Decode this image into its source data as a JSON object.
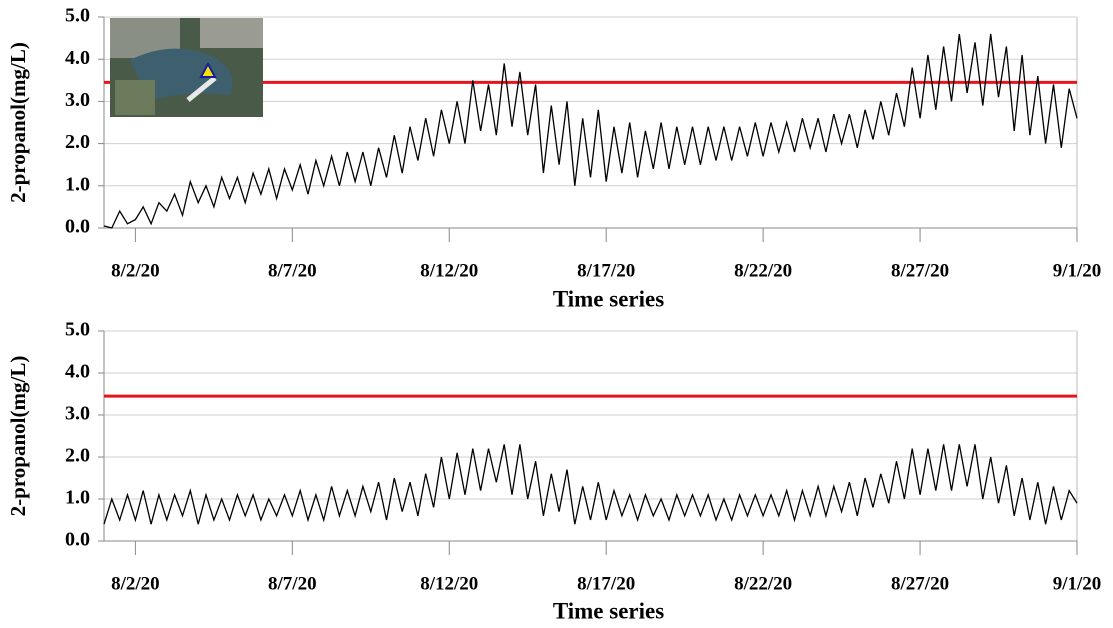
{
  "chart_data": [
    {
      "type": "line",
      "y_label": "2-propanol(mg/L)",
      "x_label": "Time series",
      "categories": [
        null,
        null,
        null,
        null,
        "8/2/20",
        null,
        null,
        null,
        null,
        null,
        null,
        null,
        null,
        null,
        null,
        null,
        null,
        null,
        null,
        null,
        null,
        null,
        null,
        null,
        "8/7/20",
        null,
        null,
        null,
        null,
        null,
        null,
        null,
        null,
        null,
        null,
        null,
        null,
        null,
        null,
        null,
        null,
        null,
        null,
        null,
        "8/12/20",
        null,
        null,
        null,
        null,
        null,
        null,
        null,
        null,
        null,
        null,
        null,
        null,
        null,
        null,
        null,
        null,
        null,
        null,
        null,
        "8/17/20",
        null,
        null,
        null,
        null,
        null,
        null,
        null,
        null,
        null,
        null,
        null,
        null,
        null,
        null,
        null,
        null,
        null,
        null,
        null,
        "8/22/20",
        null,
        null,
        null,
        null,
        null,
        null,
        null,
        null,
        null,
        null,
        null,
        null,
        null,
        null,
        null,
        null,
        null,
        null,
        null,
        "8/27/20",
        null,
        null,
        null,
        null,
        null,
        null,
        null,
        null,
        null,
        null,
        null,
        null,
        null,
        null,
        null,
        null,
        null,
        null,
        null,
        "9/1/20"
      ],
      "values": [
        0.05,
        0.0,
        0.4,
        0.1,
        0.2,
        0.5,
        0.1,
        0.6,
        0.4,
        0.8,
        0.3,
        1.1,
        0.6,
        1.0,
        0.5,
        1.2,
        0.7,
        1.2,
        0.6,
        1.3,
        0.8,
        1.4,
        0.7,
        1.4,
        0.9,
        1.5,
        0.8,
        1.6,
        1.0,
        1.7,
        1.0,
        1.8,
        1.1,
        1.8,
        1.0,
        1.9,
        1.2,
        2.2,
        1.3,
        2.4,
        1.6,
        2.6,
        1.7,
        2.8,
        2.0,
        3.0,
        2.0,
        3.5,
        2.3,
        3.4,
        2.2,
        3.9,
        2.4,
        3.7,
        2.2,
        3.4,
        1.3,
        2.9,
        1.5,
        3.0,
        1.0,
        2.6,
        1.2,
        2.8,
        1.1,
        2.4,
        1.3,
        2.5,
        1.2,
        2.3,
        1.4,
        2.5,
        1.4,
        2.4,
        1.5,
        2.4,
        1.5,
        2.4,
        1.6,
        2.4,
        1.6,
        2.4,
        1.7,
        2.5,
        1.7,
        2.5,
        1.8,
        2.5,
        1.8,
        2.6,
        1.9,
        2.6,
        1.8,
        2.7,
        2.0,
        2.7,
        1.9,
        2.8,
        2.1,
        3.0,
        2.2,
        3.2,
        2.4,
        3.8,
        2.6,
        4.1,
        2.8,
        4.3,
        3.0,
        4.6,
        3.2,
        4.4,
        2.9,
        4.6,
        3.1,
        4.3,
        2.3,
        4.1,
        2.2,
        3.6,
        2.0,
        3.4,
        1.9,
        3.3,
        2.6
      ],
      "color": "#000000",
      "threshold": 3.45,
      "threshold_color": "#e8141b",
      "grid": true,
      "ylim": [
        0,
        5
      ],
      "yticks": [
        {
          "value": 0,
          "label": "0.0"
        },
        {
          "value": 1,
          "label": "1.0"
        },
        {
          "value": 2,
          "label": "2.0"
        },
        {
          "value": 3,
          "label": "3.0"
        },
        {
          "value": 4,
          "label": "4.0"
        },
        {
          "value": 5,
          "label": "5.0"
        }
      ]
    },
    {
      "type": "line",
      "y_label": "2-propanol(mg/L)",
      "x_label": "Time series",
      "categories": [
        null,
        null,
        null,
        null,
        "8/2/20",
        null,
        null,
        null,
        null,
        null,
        null,
        null,
        null,
        null,
        null,
        null,
        null,
        null,
        null,
        null,
        null,
        null,
        null,
        null,
        "8/7/20",
        null,
        null,
        null,
        null,
        null,
        null,
        null,
        null,
        null,
        null,
        null,
        null,
        null,
        null,
        null,
        null,
        null,
        null,
        null,
        "8/12/20",
        null,
        null,
        null,
        null,
        null,
        null,
        null,
        null,
        null,
        null,
        null,
        null,
        null,
        null,
        null,
        null,
        null,
        null,
        null,
        "8/17/20",
        null,
        null,
        null,
        null,
        null,
        null,
        null,
        null,
        null,
        null,
        null,
        null,
        null,
        null,
        null,
        null,
        null,
        null,
        null,
        "8/22/20",
        null,
        null,
        null,
        null,
        null,
        null,
        null,
        null,
        null,
        null,
        null,
        null,
        null,
        null,
        null,
        null,
        null,
        null,
        null,
        "8/27/20",
        null,
        null,
        null,
        null,
        null,
        null,
        null,
        null,
        null,
        null,
        null,
        null,
        null,
        null,
        null,
        null,
        null,
        null,
        null,
        "9/1/20"
      ],
      "values": [
        0.4,
        1.0,
        0.5,
        1.1,
        0.5,
        1.2,
        0.4,
        1.1,
        0.5,
        1.1,
        0.6,
        1.2,
        0.4,
        1.1,
        0.5,
        1.0,
        0.5,
        1.1,
        0.6,
        1.1,
        0.5,
        1.0,
        0.6,
        1.1,
        0.6,
        1.2,
        0.5,
        1.1,
        0.5,
        1.3,
        0.6,
        1.2,
        0.6,
        1.3,
        0.7,
        1.4,
        0.5,
        1.5,
        0.7,
        1.4,
        0.6,
        1.6,
        0.8,
        2.0,
        1.0,
        2.1,
        1.1,
        2.2,
        1.2,
        2.2,
        1.4,
        2.3,
        1.1,
        2.3,
        1.0,
        1.9,
        0.6,
        1.6,
        0.7,
        1.7,
        0.4,
        1.3,
        0.5,
        1.4,
        0.5,
        1.2,
        0.6,
        1.1,
        0.5,
        1.1,
        0.6,
        1.0,
        0.5,
        1.1,
        0.6,
        1.1,
        0.6,
        1.1,
        0.5,
        1.0,
        0.5,
        1.1,
        0.6,
        1.1,
        0.6,
        1.1,
        0.6,
        1.2,
        0.5,
        1.2,
        0.6,
        1.3,
        0.6,
        1.3,
        0.7,
        1.4,
        0.6,
        1.5,
        0.8,
        1.6,
        0.9,
        1.9,
        1.0,
        2.2,
        1.1,
        2.2,
        1.2,
        2.3,
        1.2,
        2.3,
        1.3,
        2.3,
        1.0,
        2.0,
        0.9,
        1.8,
        0.6,
        1.5,
        0.5,
        1.4,
        0.4,
        1.3,
        0.5,
        1.2,
        0.9
      ],
      "color": "#000000",
      "threshold": 3.45,
      "threshold_color": "#e8141b",
      "grid": true,
      "ylim": [
        0,
        5
      ],
      "yticks": [
        {
          "value": 0,
          "label": "0.0"
        },
        {
          "value": 1,
          "label": "1.0"
        },
        {
          "value": 2,
          "label": "2.0"
        },
        {
          "value": 3,
          "label": "3.0"
        },
        {
          "value": 4,
          "label": "4.0"
        },
        {
          "value": 5,
          "label": "5.0"
        }
      ]
    }
  ]
}
